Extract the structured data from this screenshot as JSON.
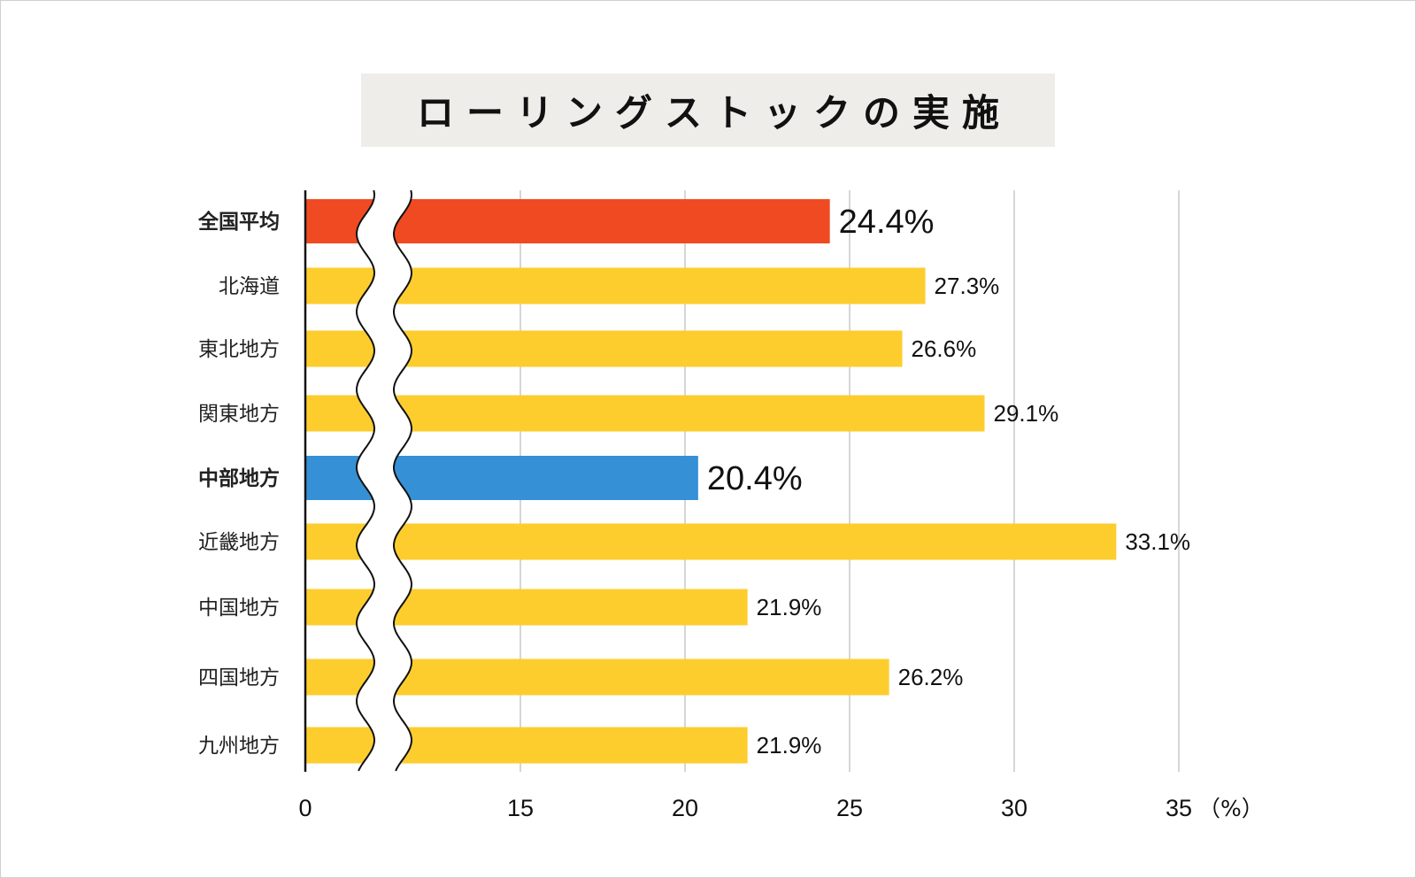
{
  "chart_data": {
    "type": "bar",
    "orientation": "horizontal",
    "title": "ローリングストックの実施",
    "categories": [
      "全国平均",
      "北海道",
      "東北地方",
      "関東地方",
      "中部地方",
      "近畿地方",
      "中国地方",
      "四国地方",
      "九州地方"
    ],
    "values": [
      24.4,
      27.3,
      26.6,
      29.1,
      20.4,
      33.1,
      21.9,
      26.2,
      21.9
    ],
    "value_labels": [
      "24.4%",
      "27.3%",
      "26.6%",
      "29.1%",
      "20.4%",
      "33.1%",
      "21.9%",
      "26.2%",
      "21.9%"
    ],
    "highlight": [
      "national",
      "normal",
      "normal",
      "normal",
      "focus",
      "normal",
      "normal",
      "normal",
      "normal"
    ],
    "x_ticks": [
      "0",
      "15",
      "20",
      "25",
      "30",
      "35"
    ],
    "x_tick_values": [
      0,
      15,
      20,
      25,
      30,
      35
    ],
    "x_unit": "（%）",
    "axis_break": "between 0 and 15",
    "xlim": [
      0,
      35
    ],
    "grid": true,
    "colors": {
      "normal": "#fdcd2e",
      "national": "#f04a22",
      "focus": "#3590d6",
      "national_label": "#f04a22",
      "focus_label": "#2a7fc2",
      "grid": "#c8c8c8"
    }
  }
}
